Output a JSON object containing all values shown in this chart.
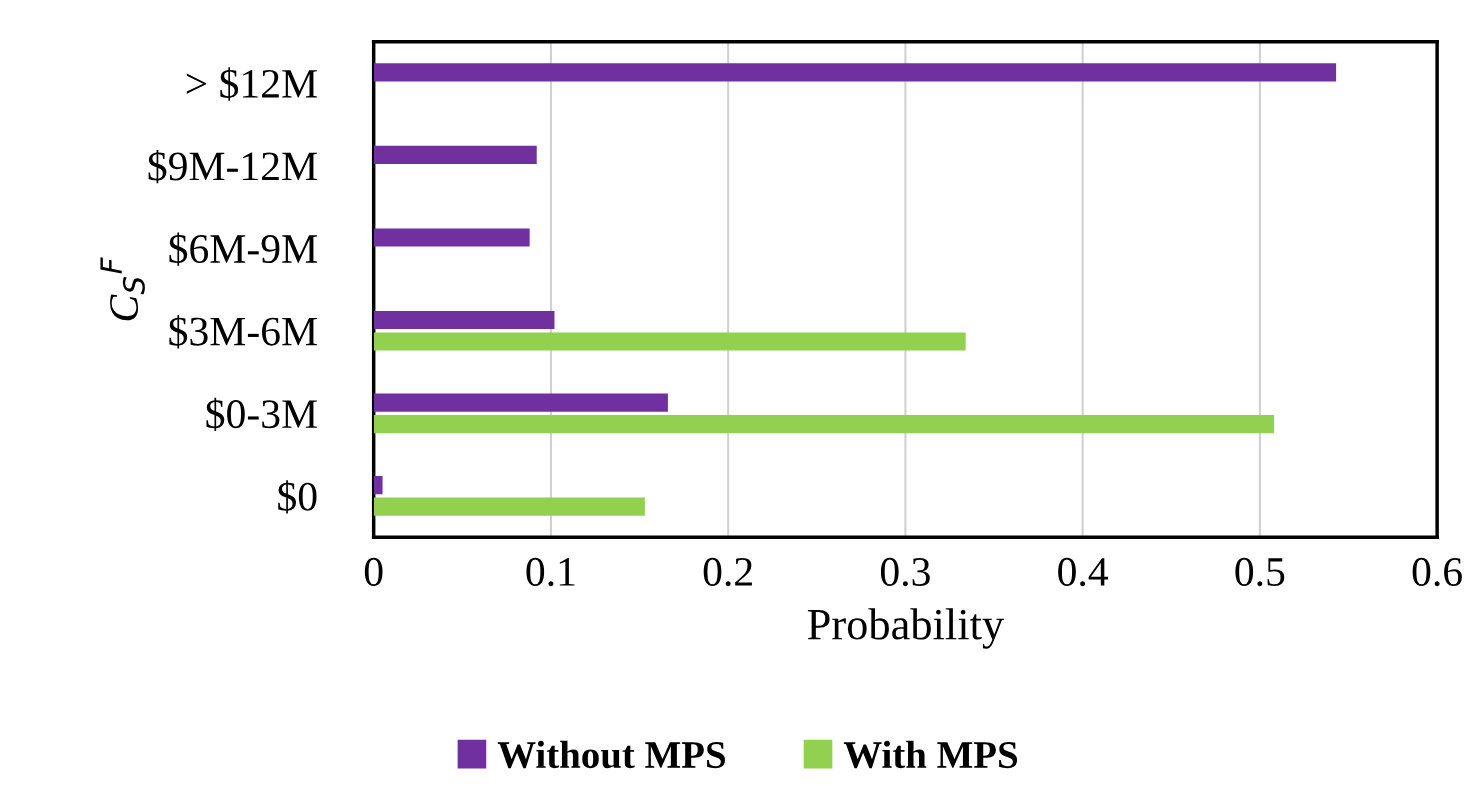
{
  "chart_data": {
    "type": "bar",
    "orientation": "horizontal",
    "ylabel": "C$_{S}$$^{F}$",
    "xlabel": "Probability",
    "categories": [
      "> $12M",
      "$9M-12M",
      "$6M-9M",
      "$3M-6M",
      "$0-3M",
      "$0"
    ],
    "series": [
      {
        "name": "Without MPS",
        "color": "#7030a0",
        "values": [
          0.543,
          0.092,
          0.088,
          0.102,
          0.166,
          0.005
        ]
      },
      {
        "name": "With MPS",
        "color": "#92d050",
        "values": [
          null,
          null,
          null,
          0.334,
          0.508,
          0.153
        ]
      }
    ],
    "xlim": [
      0,
      0.6
    ],
    "xticks": [
      0,
      0.1,
      0.2,
      0.3,
      0.4,
      0.5,
      0.6
    ],
    "grid": "x",
    "legend": "bottom"
  }
}
